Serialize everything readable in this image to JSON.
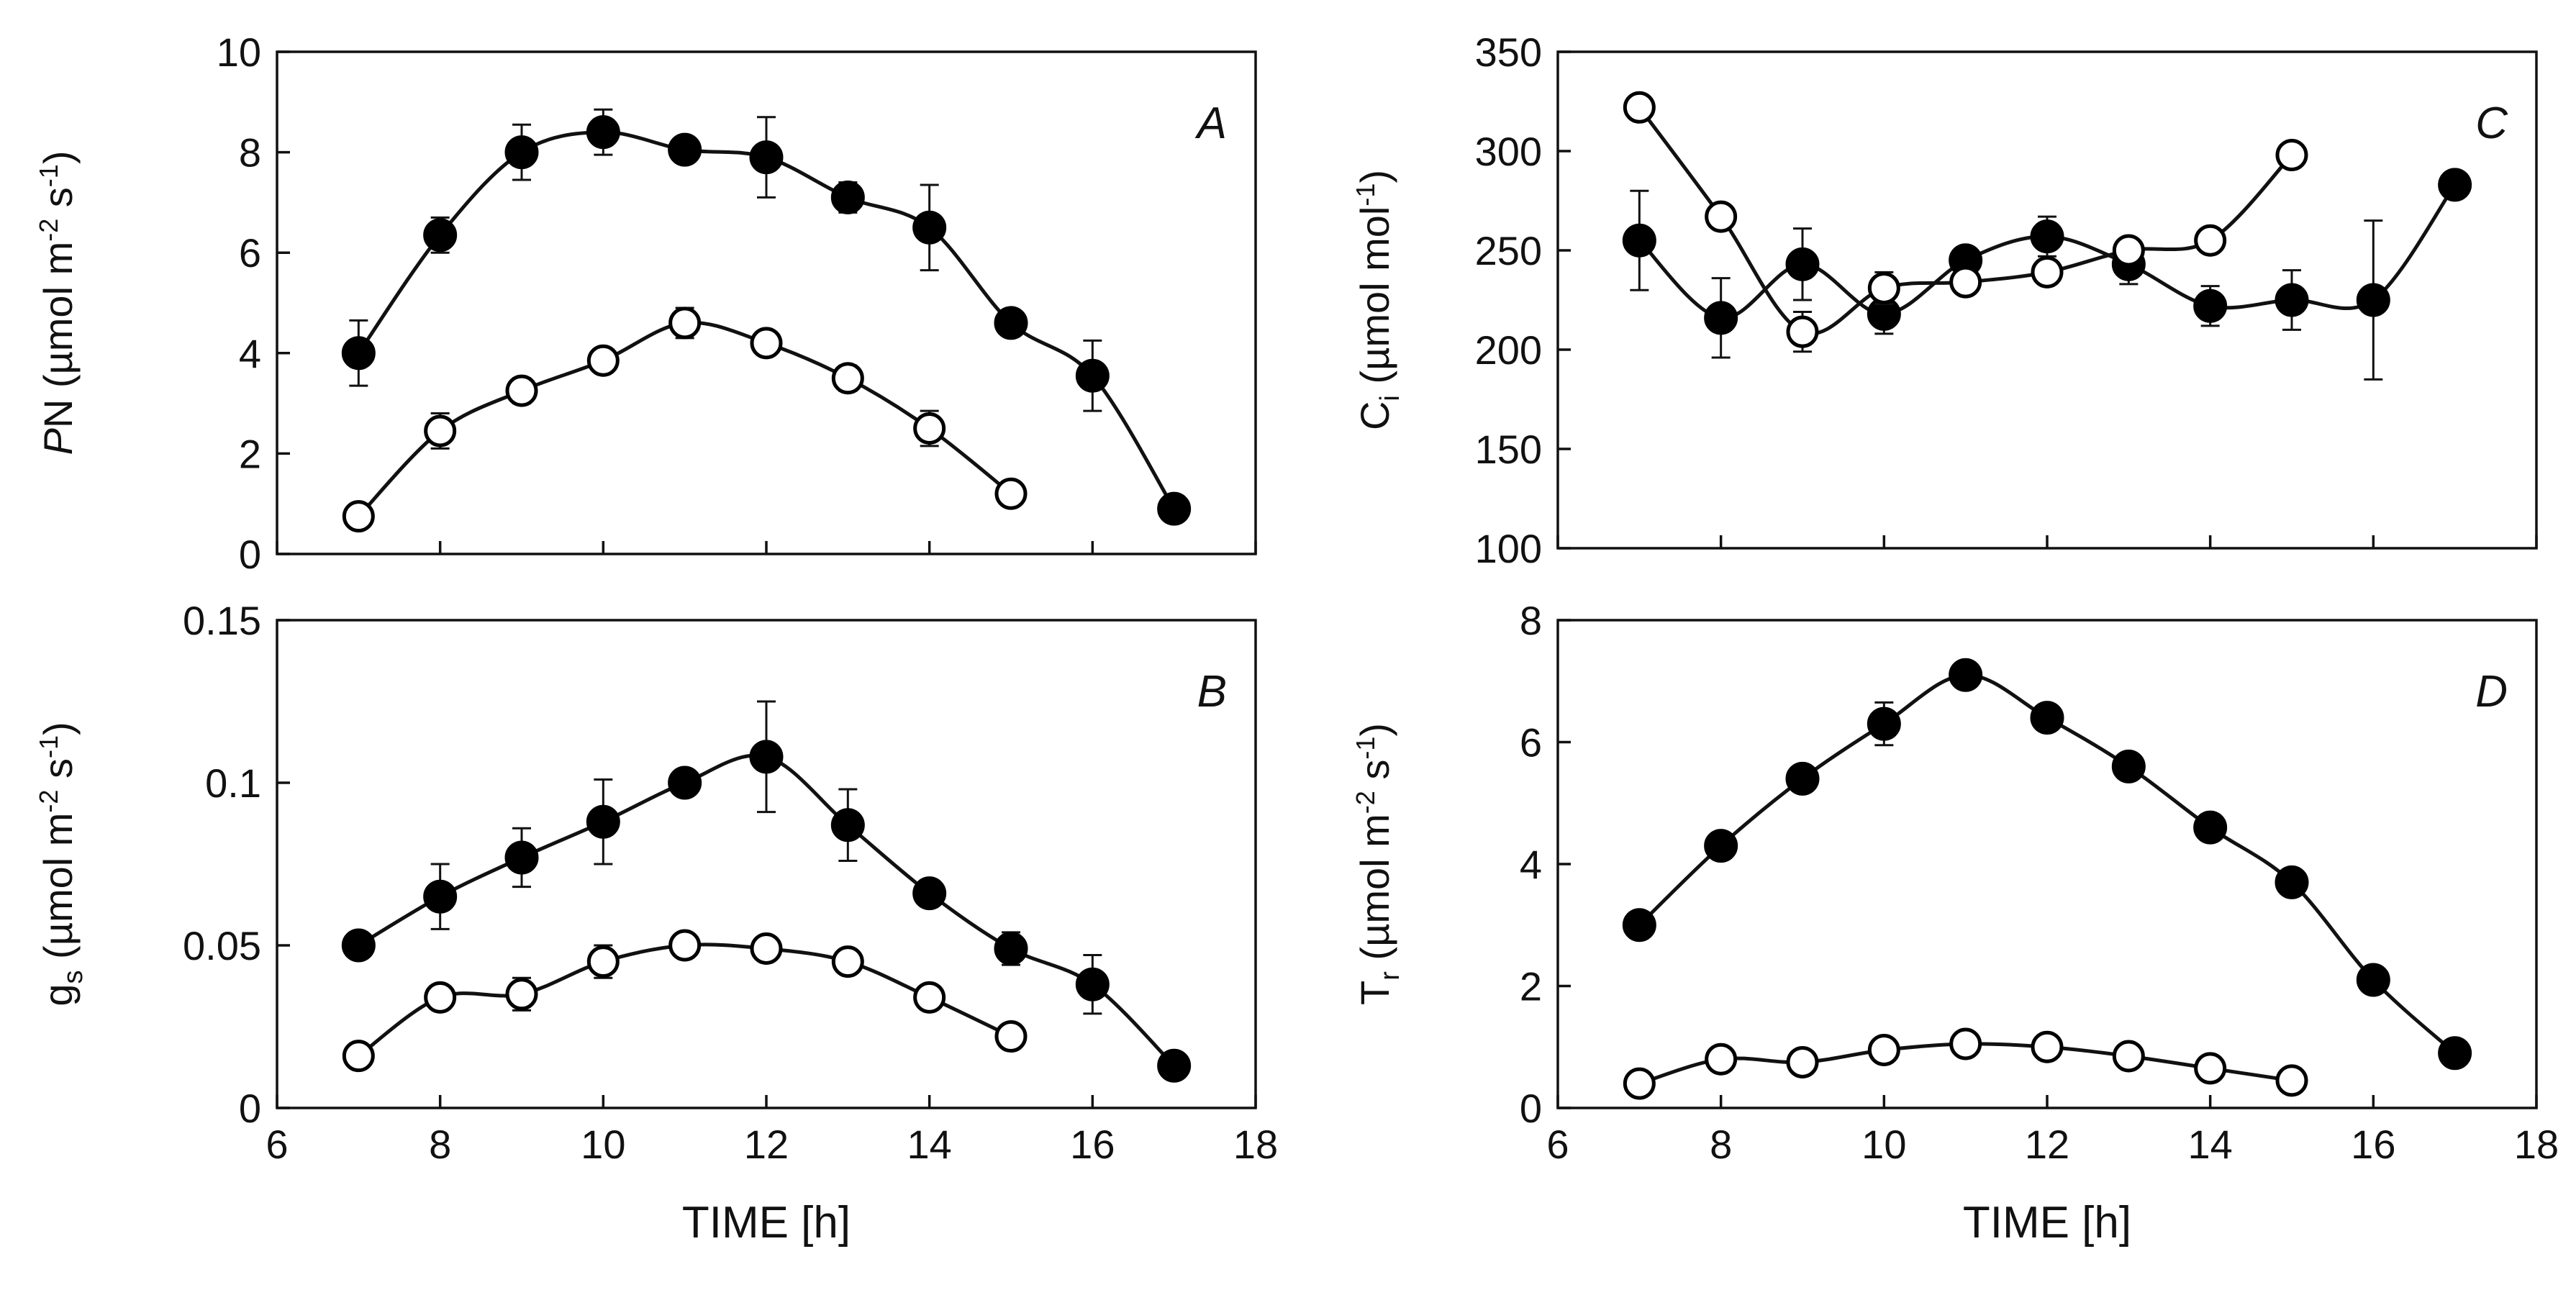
{
  "chart_data": [
    {
      "panel": "A",
      "type": "line",
      "xlim": [
        6,
        18
      ],
      "xticks": [
        6,
        8,
        10,
        12,
        14,
        16,
        18
      ],
      "show_x_ticklabels": false,
      "ylim": [
        0,
        10
      ],
      "yticks": [
        0,
        2,
        4,
        6,
        8,
        10
      ],
      "ytick_labels": [
        "0",
        "2",
        "4",
        "6",
        "8",
        "10"
      ],
      "ylabel": {
        "prefix": "",
        "italic": "P",
        "main": "N (µmol m",
        "sup1": "-2",
        "mid": " s",
        "sup2": "-1",
        "end": ")"
      },
      "xlabel": "",
      "series": [
        {
          "name": "filled",
          "marker": "filled",
          "x": [
            7,
            8,
            9,
            10,
            11,
            12,
            13,
            14,
            15,
            16,
            17
          ],
          "y": [
            4.0,
            6.35,
            8.0,
            8.4,
            8.05,
            7.9,
            7.1,
            6.5,
            4.6,
            3.55,
            0.9
          ],
          "err": [
            0.65,
            0.35,
            0.55,
            0.45,
            0.15,
            0.8,
            0.3,
            0.85,
            0.15,
            0.7,
            0.1
          ]
        },
        {
          "name": "open",
          "marker": "open",
          "x": [
            7,
            8,
            9,
            10,
            11,
            12,
            13,
            14,
            15
          ],
          "y": [
            0.75,
            2.45,
            3.25,
            3.85,
            4.6,
            4.2,
            3.5,
            2.5,
            1.2
          ],
          "err": [
            0.15,
            0.35,
            0.25,
            0.15,
            0.3,
            0.15,
            0.25,
            0.35,
            0.2
          ]
        }
      ]
    },
    {
      "panel": "B",
      "type": "line",
      "xlim": [
        6,
        18
      ],
      "xticks": [
        6,
        8,
        10,
        12,
        14,
        16,
        18
      ],
      "show_x_ticklabels": true,
      "xtick_labels": [
        "6",
        "8",
        "10",
        "12",
        "14",
        "16",
        "18"
      ],
      "ylim": [
        0,
        0.15
      ],
      "yticks": [
        0,
        0.05,
        0.1,
        0.15
      ],
      "ytick_labels": [
        "0",
        "0.05",
        "0.1",
        "0.15"
      ],
      "ylabel": {
        "prefix": "g",
        "sub": "s",
        "main": " (µmol m",
        "sup1": "-2",
        "mid": " s",
        "sup2": "-1",
        "end": ")"
      },
      "xlabel": "TIME [h]",
      "series": [
        {
          "name": "filled",
          "marker": "filled",
          "x": [
            7,
            8,
            9,
            10,
            11,
            12,
            13,
            14,
            15,
            16,
            17
          ],
          "y": [
            0.05,
            0.065,
            0.077,
            0.088,
            0.1,
            0.108,
            0.087,
            0.066,
            0.049,
            0.038,
            0.013
          ],
          "err": [
            0.002,
            0.01,
            0.009,
            0.013,
            0.003,
            0.017,
            0.011,
            0.004,
            0.005,
            0.009,
            0.002
          ]
        },
        {
          "name": "open",
          "marker": "open",
          "x": [
            7,
            8,
            9,
            10,
            11,
            12,
            13,
            14,
            15
          ],
          "y": [
            0.016,
            0.034,
            0.035,
            0.045,
            0.05,
            0.049,
            0.045,
            0.034,
            0.022
          ],
          "err": [
            0.002,
            0.003,
            0.005,
            0.005,
            0.003,
            0.003,
            0.003,
            0.002,
            0.002
          ]
        }
      ]
    },
    {
      "panel": "C",
      "type": "line",
      "xlim": [
        6,
        18
      ],
      "xticks": [
        6,
        8,
        10,
        12,
        14,
        16,
        18
      ],
      "show_x_ticklabels": false,
      "ylim": [
        100,
        350
      ],
      "yticks": [
        100,
        150,
        200,
        250,
        300,
        350
      ],
      "ytick_labels": [
        "100",
        "150",
        "200",
        "250",
        "300",
        "350"
      ],
      "ylabel": {
        "prefix": "C",
        "sub": "i",
        "main": " (µmol mol",
        "sup1": "-1",
        "mid": "",
        "sup2": "",
        "end": ")"
      },
      "xlabel": "",
      "series": [
        {
          "name": "filled",
          "marker": "filled",
          "x": [
            7,
            8,
            9,
            10,
            11,
            12,
            13,
            14,
            15,
            16,
            17
          ],
          "y": [
            255,
            216,
            243,
            218,
            245,
            257,
            243,
            222,
            225,
            225,
            283
          ],
          "err": [
            25,
            20,
            18,
            10,
            5,
            10,
            10,
            10,
            15,
            40,
            5
          ]
        },
        {
          "name": "open",
          "marker": "open",
          "x": [
            7,
            8,
            9,
            10,
            11,
            12,
            13,
            14,
            15
          ],
          "y": [
            322,
            267,
            209,
            231,
            234,
            239,
            250,
            255,
            298
          ],
          "err": [
            5,
            5,
            10,
            8,
            5,
            5,
            5,
            5,
            5
          ]
        }
      ]
    },
    {
      "panel": "D",
      "type": "line",
      "xlim": [
        6,
        18
      ],
      "xticks": [
        6,
        8,
        10,
        12,
        14,
        16,
        18
      ],
      "show_x_ticklabels": true,
      "xtick_labels": [
        "6",
        "8",
        "10",
        "12",
        "14",
        "16",
        "18"
      ],
      "ylim": [
        0,
        8
      ],
      "yticks": [
        0,
        2,
        4,
        6,
        8
      ],
      "ytick_labels": [
        "0",
        "2",
        "4",
        "6",
        "8"
      ],
      "ylabel": {
        "prefix": "T",
        "sub": "r",
        "main": " (µmol m",
        "sup1": "-2",
        "mid": " s",
        "sup2": "-1",
        "end": ")"
      },
      "xlabel": "TIME [h]",
      "series": [
        {
          "name": "filled",
          "marker": "filled",
          "x": [
            7,
            8,
            9,
            10,
            11,
            12,
            13,
            14,
            15,
            16,
            17
          ],
          "y": [
            3.0,
            4.3,
            5.4,
            6.3,
            7.1,
            6.4,
            5.6,
            4.6,
            3.7,
            2.1,
            0.9
          ],
          "err": [
            0.1,
            0.15,
            0.15,
            0.35,
            0.1,
            0.15,
            0.15,
            0.1,
            0.1,
            0.1,
            0.1
          ]
        },
        {
          "name": "open",
          "marker": "open",
          "x": [
            7,
            8,
            9,
            10,
            11,
            12,
            13,
            14,
            15
          ],
          "y": [
            0.4,
            0.8,
            0.75,
            0.95,
            1.05,
            1.0,
            0.85,
            0.65,
            0.45
          ],
          "err": [
            0.05,
            0.1,
            0.1,
            0.1,
            0.1,
            0.1,
            0.1,
            0.1,
            0.05
          ]
        }
      ]
    }
  ]
}
